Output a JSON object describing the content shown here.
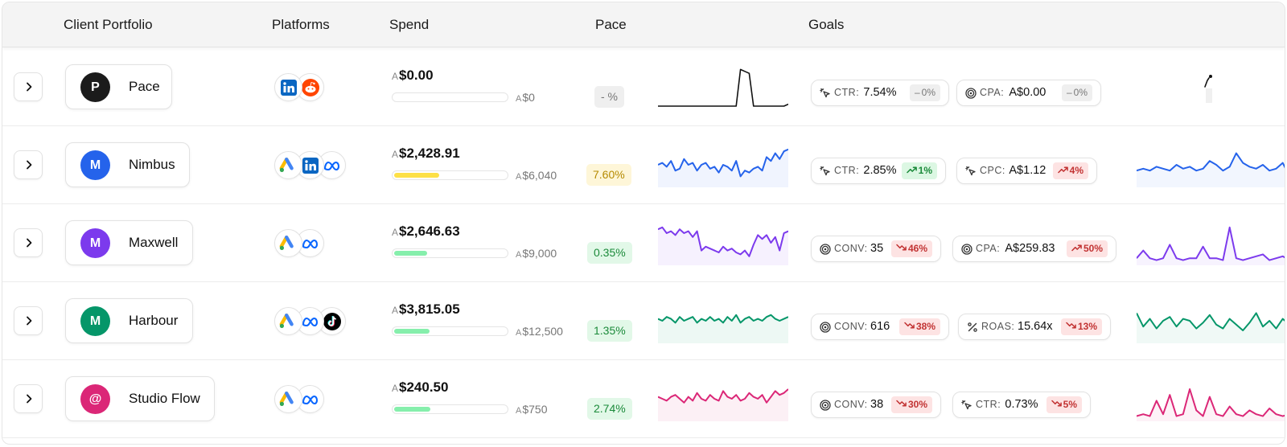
{
  "headers": {
    "client": "Client Portfolio",
    "platforms": "Platforms",
    "spend": "Spend",
    "pace": "Pace",
    "goals": "Goals"
  },
  "currency_prefix": "A",
  "rows": [
    {
      "initial": "P",
      "name": "Pace",
      "avatar_color": "#1b1b1b",
      "platforms": [
        "linkedin-icon",
        "reddit-icon"
      ],
      "spend": "$0.00",
      "budget": "$0",
      "spend_progress": 0,
      "pace": "- %",
      "pace_status": "neutral",
      "goals": [
        {
          "icon": "cursor-click-icon",
          "label": "CTR:",
          "value": "7.54%",
          "change": "0%",
          "trend": "neutral"
        },
        {
          "icon": "target-icon",
          "label": "CPA:",
          "value": "A$0.00",
          "change": "0%",
          "trend": "neutral"
        }
      ]
    },
    {
      "initial": "M",
      "name": "Nimbus",
      "avatar_color": "#2563eb",
      "platforms": [
        "google-ads-icon",
        "linkedin-icon",
        "meta-icon"
      ],
      "spend": "$2,428.91",
      "budget": "$6,040",
      "spend_progress": 0.4,
      "pace": "7.60%",
      "pace_status": "warning",
      "goals": [
        {
          "icon": "cursor-click-icon",
          "label": "CTR:",
          "value": "2.85%",
          "change": "1%",
          "trend": "up"
        },
        {
          "icon": "cursor-click-icon",
          "label": "CPC:",
          "value": "A$1.12",
          "change": "4%",
          "trend": "up-bad"
        }
      ]
    },
    {
      "initial": "M",
      "name": "Maxwell",
      "avatar_color": "#7c3aed",
      "platforms": [
        "google-ads-icon",
        "meta-icon"
      ],
      "spend": "$2,646.63",
      "budget": "$9,000",
      "spend_progress": 0.29,
      "pace": "0.35%",
      "pace_status": "good",
      "goals": [
        {
          "icon": "target-icon",
          "label": "CONV:",
          "value": "35",
          "change": "46%",
          "trend": "down"
        },
        {
          "icon": "target-icon",
          "label": "CPA:",
          "value": "A$259.83",
          "change": "50%",
          "trend": "up-bad"
        }
      ]
    },
    {
      "initial": "M",
      "name": "Harbour",
      "avatar_color": "#059669",
      "platforms": [
        "google-ads-icon",
        "meta-icon",
        "tiktok-icon"
      ],
      "spend": "$3,815.05",
      "budget": "$12,500",
      "spend_progress": 0.31,
      "pace": "1.35%",
      "pace_status": "good",
      "goals": [
        {
          "icon": "target-icon",
          "label": "CONV:",
          "value": "616",
          "change": "38%",
          "trend": "down"
        },
        {
          "icon": "percent-icon",
          "label": "ROAS:",
          "value": "15.64x",
          "change": "13%",
          "trend": "down"
        }
      ]
    },
    {
      "initial": "@",
      "name": "Studio Flow",
      "avatar_color": "#db2777",
      "platforms": [
        "google-ads-icon",
        "meta-icon"
      ],
      "spend": "$240.50",
      "budget": "$750",
      "spend_progress": 0.32,
      "pace": "2.74%",
      "pace_status": "good",
      "goals": [
        {
          "icon": "target-icon",
          "label": "CONV:",
          "value": "38",
          "change": "30%",
          "trend": "down"
        },
        {
          "icon": "cursor-click-icon",
          "label": "CTR:",
          "value": "0.73%",
          "change": "5%",
          "trend": "down"
        }
      ]
    }
  ],
  "colors": {
    "accent_blue": "#2563eb",
    "accent_purple": "#7c3aed",
    "accent_green": "#059669",
    "accent_pink": "#db2777",
    "progress_yellow": "#fde047",
    "progress_green": "#86efac",
    "trend_up": "#1b8a3a",
    "trend_down": "#c23333"
  }
}
